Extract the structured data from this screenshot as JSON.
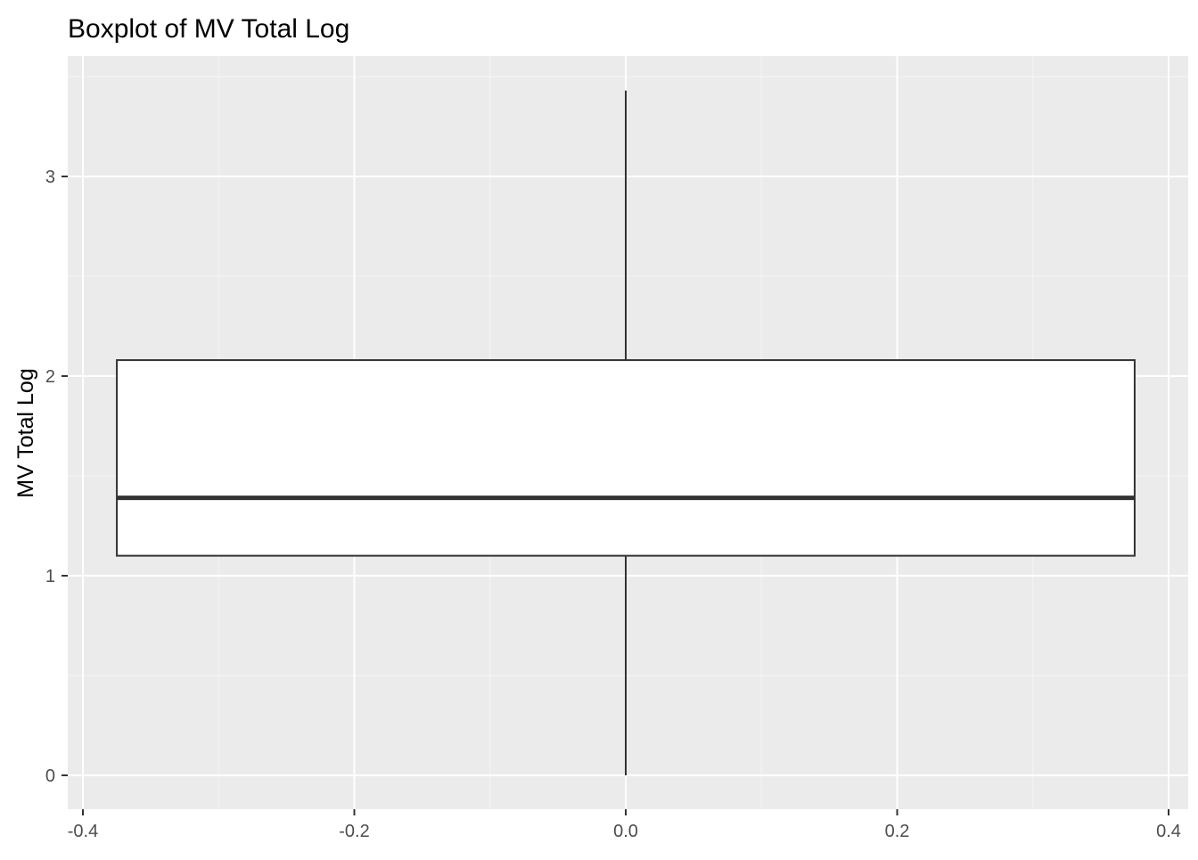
{
  "chart_data": {
    "type": "boxplot",
    "title": "Boxplot of MV Total Log",
    "xlabel": "",
    "ylabel": "MV Total Log",
    "xlim": [
      -0.4,
      0.4
    ],
    "ylim": [
      -0.17,
      3.6
    ],
    "x_ticks": [
      {
        "value": -0.4,
        "label": "-0.4"
      },
      {
        "value": -0.2,
        "label": "-0.2"
      },
      {
        "value": 0.0,
        "label": "0.0"
      },
      {
        "value": 0.2,
        "label": "0.2"
      },
      {
        "value": 0.4,
        "label": "0.4"
      }
    ],
    "y_ticks": [
      {
        "value": 0,
        "label": "0"
      },
      {
        "value": 1,
        "label": "1"
      },
      {
        "value": 2,
        "label": "2"
      },
      {
        "value": 3,
        "label": "3"
      }
    ],
    "grid": true,
    "box": {
      "x_center": 0.0,
      "x_left": -0.375,
      "x_right": 0.375,
      "whisker_low": 0.0,
      "q1": 1.1,
      "median": 1.39,
      "q3": 2.08,
      "whisker_high": 3.43
    },
    "colors": {
      "panel_background": "#EBEBEB",
      "grid_major": "#FFFFFF",
      "grid_minor": "#F5F5F5",
      "box_fill": "#FFFFFF",
      "box_stroke": "#333333",
      "tick_text": "#4D4D4D",
      "title_text": "#000000"
    }
  }
}
